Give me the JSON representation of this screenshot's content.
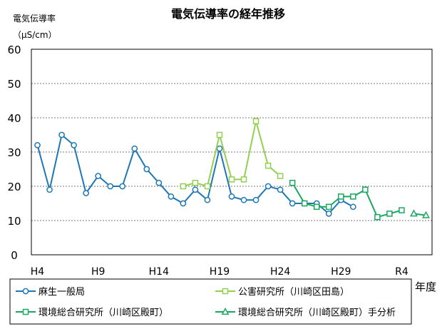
{
  "chart_data": {
    "type": "line",
    "title": "電気伝導率の経年推移",
    "ylabel": "電気伝導率",
    "yunit": "（μS/cm）",
    "xlabel": "年度",
    "ylim": [
      0,
      60
    ],
    "yticks": [
      0,
      10,
      20,
      30,
      40,
      50,
      60
    ],
    "grid": true,
    "x_tick_labels": [
      "H4",
      "H9",
      "H14",
      "H19",
      "H24",
      "H29",
      "R4"
    ],
    "x": [
      "H4",
      "H5",
      "H6",
      "H7",
      "H8",
      "H9",
      "H10",
      "H11",
      "H12",
      "H13",
      "H14",
      "H15",
      "H16",
      "H17",
      "H18",
      "H19",
      "H20",
      "H21",
      "H22",
      "H23",
      "H24",
      "H25",
      "H26",
      "H27",
      "H28",
      "H29",
      "H30",
      "R1",
      "R2",
      "R3",
      "R4",
      "R5",
      "R6"
    ],
    "series": [
      {
        "name": "麻生一般局",
        "color": "#1f77b4",
        "marker": "circle",
        "values": [
          32,
          19,
          35,
          32,
          18,
          23,
          20,
          20,
          31,
          25,
          21,
          17,
          15,
          19,
          16,
          31,
          17,
          16,
          16,
          20,
          19,
          15,
          15,
          15,
          12,
          16,
          14,
          null,
          null,
          null,
          null,
          null,
          null
        ]
      },
      {
        "name": "公害研究所（川崎区田島）",
        "color": "#92d050",
        "marker": "square",
        "values": [
          null,
          null,
          null,
          null,
          null,
          null,
          null,
          null,
          null,
          null,
          null,
          null,
          20,
          21,
          20,
          35,
          22,
          22,
          39,
          26,
          23,
          null,
          null,
          null,
          null,
          null,
          null,
          null,
          null,
          null,
          null,
          null,
          null
        ]
      },
      {
        "name": "環境総合研究所（川崎区殿町）",
        "color": "#1aa860",
        "marker": "square",
        "values": [
          null,
          null,
          null,
          null,
          null,
          null,
          null,
          null,
          null,
          null,
          null,
          null,
          null,
          null,
          null,
          null,
          null,
          null,
          null,
          null,
          null,
          21,
          15,
          14,
          14,
          17,
          17,
          19,
          11,
          12,
          13,
          null,
          null
        ]
      },
      {
        "name": "環境総合研究所（川崎区殿町）手分析",
        "color": "#1aa860",
        "marker": "triangle",
        "values": [
          null,
          null,
          null,
          null,
          null,
          null,
          null,
          null,
          null,
          null,
          null,
          null,
          null,
          null,
          null,
          null,
          null,
          null,
          null,
          null,
          null,
          null,
          null,
          null,
          null,
          null,
          null,
          null,
          null,
          null,
          null,
          12,
          11.5
        ]
      }
    ],
    "legend_position": "bottom"
  }
}
